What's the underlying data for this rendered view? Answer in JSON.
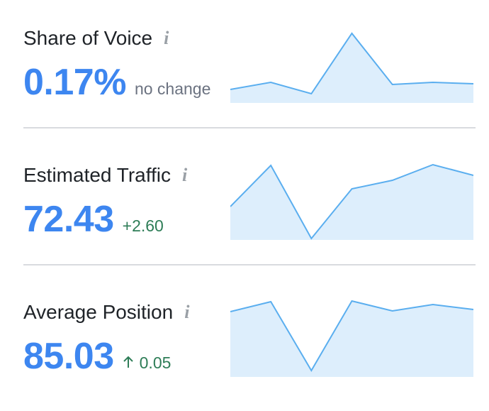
{
  "metrics": [
    {
      "title": "Share of Voice",
      "value": "0.17%",
      "change": "no change",
      "change_color": "#6b7280",
      "change_arrow": false,
      "sparkline": {
        "type": "area",
        "values": [
          19,
          29,
          13,
          98,
          26,
          29,
          27
        ],
        "color": "#5aaeef",
        "fill": "#ddeefc"
      }
    },
    {
      "title": "Estimated Traffic",
      "value": "72.43",
      "change": "+2.60",
      "change_color": "#2e7d57",
      "change_arrow": false,
      "sparkline": {
        "type": "area",
        "values": [
          47,
          105,
          2,
          72,
          84,
          106,
          91
        ],
        "color": "#5aaeef",
        "fill": "#ddeefc"
      }
    },
    {
      "title": "Average Position",
      "value": "85.03",
      "change": "0.05",
      "change_color": "#2e7d57",
      "change_arrow": true,
      "sparkline": {
        "type": "area",
        "values": [
          92,
          106,
          9,
          107,
          93,
          102,
          95
        ],
        "color": "#5aaeef",
        "fill": "#ddeefc"
      }
    }
  ]
}
